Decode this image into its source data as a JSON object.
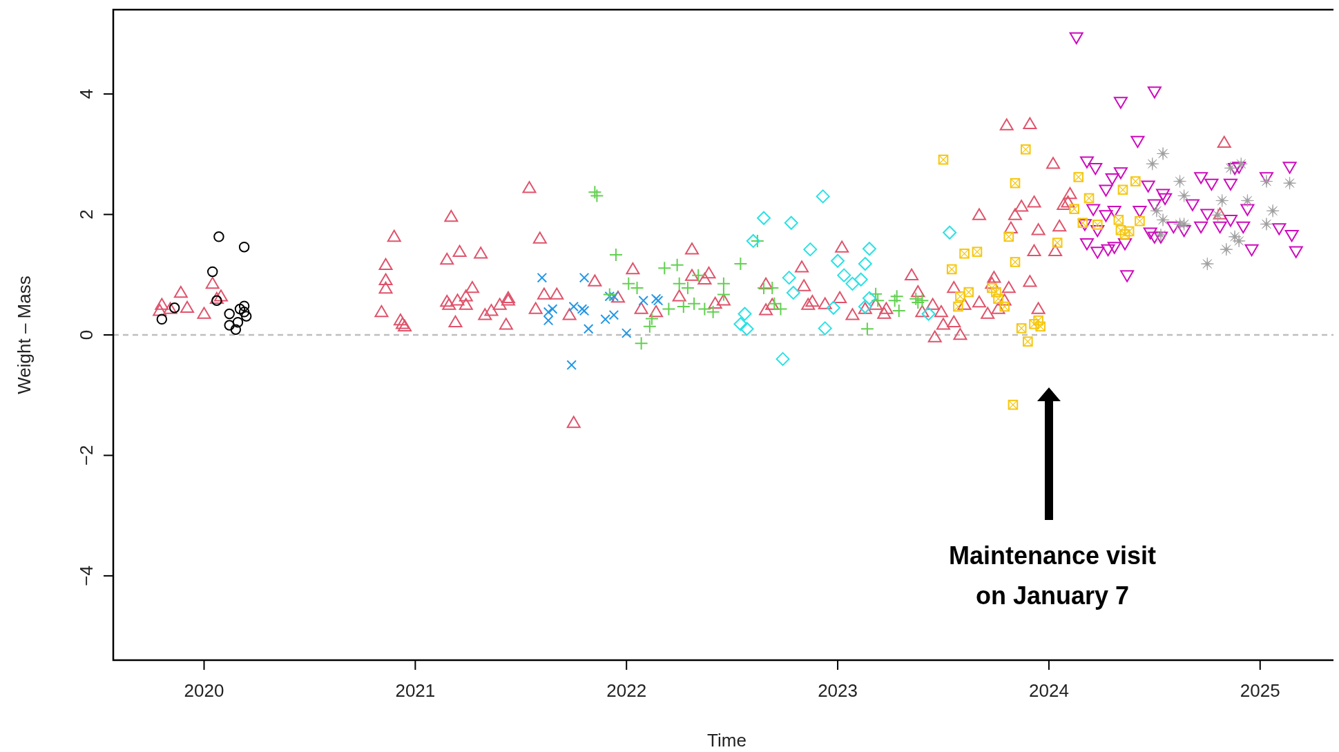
{
  "chart_data": {
    "type": "scatter",
    "xlabel": "Time",
    "ylabel": "Weight – Mass",
    "xlim": [
      2019.57,
      2025.38
    ],
    "ylim": [
      -5.4,
      5.4
    ],
    "xticks": [
      2020,
      2021,
      2022,
      2023,
      2024,
      2025
    ],
    "yticks": [
      -4,
      -2,
      0,
      2,
      4
    ],
    "grid": false,
    "ref_lines": [
      {
        "axis": "y",
        "value": 0,
        "color": "#bebebe",
        "line_style": "dashed"
      }
    ],
    "annotations": [
      "Maintenance visit\non January 7"
    ],
    "series": [
      {
        "color": "#000000",
        "marker": "circle",
        "x": [
          2019.8,
          2019.86,
          2020.04,
          2020.07,
          2020.06,
          2020.12,
          2020.12,
          2020.15,
          2020.16,
          2020.17,
          2020.19,
          2020.19,
          2020.2,
          2020.19
        ],
        "values": [
          0.26,
          0.45,
          1.05,
          1.63,
          0.57,
          0.35,
          0.16,
          0.09,
          0.21,
          0.43,
          0.48,
          0.38,
          0.31,
          1.46
        ]
      },
      {
        "color": "#df536b",
        "marker": "triangle",
        "x": [
          2019.79,
          2019.8,
          2019.84,
          2019.89,
          2019.92,
          2020.0,
          2020.04,
          2020.06,
          2020.08,
          2020.84,
          2020.86,
          2020.86,
          2020.86,
          2020.9,
          2020.93,
          2020.94,
          2020.95,
          2021.15,
          2021.17,
          2021.15,
          2021.16,
          2021.19,
          2021.2,
          2021.21,
          2021.24,
          2021.24,
          2021.27,
          2021.31,
          2021.33,
          2021.36,
          2021.4,
          2021.43,
          2021.44,
          2021.44,
          2021.54,
          2021.59,
          2021.57,
          2021.61,
          2021.67,
          2021.73,
          2021.75,
          2021.85,
          2021.96,
          2022.03,
          2022.07,
          2022.14,
          2022.25,
          2022.31,
          2022.31,
          2022.37,
          2022.39,
          2022.42,
          2022.46,
          2022.66,
          2022.66,
          2022.69,
          2022.83,
          2022.84,
          2022.86,
          2022.88,
          2022.94,
          2023.02,
          2023.01,
          2023.07,
          2023.13,
          2023.18,
          2023.22,
          2023.23,
          2023.35,
          2023.38,
          2023.4,
          2023.45,
          2023.46,
          2023.49,
          2023.5,
          2023.55,
          2023.55,
          2023.58,
          2023.6,
          2023.67,
          2023.67,
          2023.71,
          2023.73,
          2023.74,
          2023.76,
          2023.79,
          2023.8,
          2023.81,
          2023.82,
          2023.84,
          2023.87,
          2023.91,
          2023.91,
          2023.93,
          2023.95,
          2023.93,
          2023.95,
          2024.02,
          2024.03,
          2024.05,
          2024.09,
          2024.1,
          2024.07,
          2024.83,
          2024.81
        ],
        "values": [
          0.4,
          0.5,
          0.43,
          0.7,
          0.45,
          0.35,
          0.85,
          0.6,
          0.64,
          0.38,
          0.77,
          0.91,
          1.16,
          1.63,
          0.24,
          0.18,
          0.14,
          1.25,
          1.96,
          0.55,
          0.5,
          0.21,
          0.57,
          1.38,
          0.5,
          0.64,
          0.78,
          1.35,
          0.33,
          0.4,
          0.5,
          0.17,
          0.57,
          0.61,
          2.44,
          1.6,
          0.43,
          0.67,
          0.67,
          0.33,
          -1.46,
          0.89,
          0.62,
          1.09,
          0.43,
          0.38,
          0.64,
          1.42,
          0.98,
          0.92,
          1.02,
          0.52,
          0.57,
          0.84,
          0.41,
          0.5,
          1.12,
          0.81,
          0.5,
          0.55,
          0.51,
          1.45,
          0.61,
          0.33,
          0.43,
          0.5,
          0.35,
          0.43,
          0.99,
          0.71,
          0.38,
          0.5,
          -0.04,
          0.38,
          0.17,
          0.78,
          0.21,
          0.0,
          0.5,
          1.99,
          0.54,
          0.35,
          0.85,
          0.95,
          0.43,
          0.57,
          3.48,
          0.78,
          1.77,
          1.99,
          2.13,
          3.5,
          0.88,
          2.2,
          1.74,
          1.39,
          0.43,
          2.84,
          1.39,
          1.8,
          2.2,
          2.34,
          2.16,
          3.19,
          2.0
        ]
      },
      {
        "color": "#2297e6",
        "marker": "x",
        "x": [
          2021.6,
          2021.63,
          2021.65,
          2021.63,
          2021.74,
          2021.75,
          2021.79,
          2021.8,
          2021.8,
          2021.82,
          2021.9,
          2021.92,
          2021.94,
          2021.94,
          2022.0,
          2022.08,
          2022.14,
          2022.15
        ],
        "values": [
          0.95,
          0.38,
          0.43,
          0.24,
          -0.5,
          0.47,
          0.43,
          0.4,
          0.95,
          0.1,
          0.26,
          0.64,
          0.33,
          0.64,
          0.03,
          0.57,
          0.6,
          0.57
        ]
      },
      {
        "color": "#61d04f",
        "marker": "plus",
        "x": [
          2021.86,
          2021.85,
          2021.95,
          2021.92,
          2022.01,
          2022.05,
          2022.07,
          2022.11,
          2022.12,
          2022.18,
          2022.24,
          2022.25,
          2022.2,
          2022.27,
          2022.29,
          2022.32,
          2022.34,
          2022.37,
          2022.41,
          2022.46,
          2022.46,
          2022.54,
          2022.62,
          2022.65,
          2022.69,
          2022.7,
          2022.73,
          2023.14,
          2023.18,
          2023.19,
          2023.27,
          2023.29,
          2023.37,
          2023.4,
          2023.38,
          2023.28
        ],
        "values": [
          2.31,
          2.37,
          1.33,
          0.67,
          0.85,
          0.78,
          -0.14,
          0.14,
          0.27,
          1.11,
          1.16,
          0.85,
          0.43,
          0.47,
          0.78,
          0.52,
          0.99,
          0.43,
          0.38,
          0.85,
          0.67,
          1.18,
          1.56,
          0.78,
          0.78,
          0.52,
          0.43,
          0.1,
          0.68,
          0.57,
          0.57,
          0.4,
          0.6,
          0.57,
          0.54,
          0.64
        ]
      },
      {
        "color": "#28e2e5",
        "marker": "diamond",
        "x": [
          2022.54,
          2022.56,
          2022.57,
          2022.65,
          2022.6,
          2022.74,
          2022.78,
          2022.77,
          2022.79,
          2022.87,
          2022.93,
          2022.94,
          2022.98,
          2023.0,
          2023.03,
          2023.07,
          2023.11,
          2023.13,
          2023.15,
          2023.13,
          2023.15,
          2023.43,
          2023.53
        ],
        "values": [
          0.18,
          0.35,
          0.1,
          1.94,
          1.56,
          -0.4,
          1.86,
          0.95,
          0.7,
          1.42,
          2.3,
          0.11,
          0.45,
          1.23,
          0.99,
          0.85,
          0.92,
          1.18,
          1.43,
          0.47,
          0.61,
          0.35,
          1.7
        ]
      },
      {
        "color": "#cd0bbc",
        "marker": "triangle-down",
        "x": [
          2024.13,
          2024.34,
          2024.5,
          2024.42,
          2024.18,
          2024.22,
          2024.3,
          2024.34,
          2024.27,
          2024.21,
          2024.27,
          2024.31,
          2024.23,
          2024.17,
          2024.18,
          2024.23,
          2024.28,
          2024.31,
          2024.36,
          2024.37,
          2024.47,
          2024.5,
          2024.54,
          2024.55,
          2024.43,
          2024.48,
          2024.53,
          2024.59,
          2024.64,
          2024.68,
          2024.72,
          2024.77,
          2024.72,
          2024.81,
          2024.86,
          2024.88,
          2024.9,
          2024.86,
          2024.92,
          2024.94,
          2024.96,
          2025.03,
          2025.09,
          2025.14,
          2025.15,
          2025.17,
          2024.5,
          2024.75
        ],
        "values": [
          4.94,
          3.87,
          4.04,
          3.22,
          2.88,
          2.77,
          2.6,
          2.7,
          2.41,
          2.09,
          1.99,
          2.06,
          1.74,
          1.84,
          1.52,
          1.38,
          1.42,
          1.46,
          1.52,
          0.99,
          2.48,
          2.17,
          2.34,
          2.27,
          2.06,
          1.7,
          1.63,
          1.8,
          1.74,
          2.17,
          2.62,
          2.51,
          1.8,
          1.8,
          1.91,
          2.77,
          2.79,
          2.51,
          1.8,
          2.09,
          1.42,
          2.62,
          1.77,
          2.79,
          1.66,
          1.39,
          1.63,
          2.01
        ]
      },
      {
        "color": "#f5c710",
        "marker": "square",
        "x": [
          2023.5,
          2023.66,
          2023.6,
          2023.54,
          2023.89,
          2023.84,
          2023.81,
          2023.84,
          2023.58,
          2023.62,
          2023.57,
          2023.75,
          2023.76,
          2023.79,
          2023.73,
          2023.87,
          2023.9,
          2023.93,
          2023.95,
          2023.96,
          2023.83,
          2024.04,
          2024.14,
          2024.12,
          2024.19,
          2024.35,
          2024.41,
          2024.34,
          2024.33,
          2024.43,
          2024.38,
          2024.23,
          2024.16,
          2024.36
        ],
        "values": [
          2.91,
          1.38,
          1.35,
          1.09,
          3.08,
          2.52,
          1.63,
          1.21,
          0.64,
          0.71,
          0.47,
          0.71,
          0.6,
          0.47,
          0.78,
          0.11,
          -0.11,
          0.18,
          0.24,
          0.14,
          -1.16,
          1.53,
          2.62,
          2.09,
          2.27,
          2.41,
          2.55,
          1.74,
          1.91,
          1.89,
          1.72,
          1.83,
          1.86,
          1.67
        ]
      },
      {
        "color": "#9e9e9e",
        "marker": "star",
        "x": [
          2024.49,
          2024.54,
          2024.62,
          2024.64,
          2024.51,
          2024.64,
          2024.54,
          2024.62,
          2024.53,
          2024.75,
          2024.8,
          2024.82,
          2024.84,
          2024.86,
          2024.88,
          2024.91,
          2024.94,
          2025.03,
          2025.06,
          2025.03,
          2025.14,
          2024.9
        ],
        "values": [
          2.84,
          3.01,
          2.55,
          2.31,
          2.06,
          1.84,
          1.91,
          1.84,
          1.66,
          1.18,
          1.99,
          2.23,
          1.42,
          2.77,
          1.63,
          2.84,
          2.23,
          2.55,
          2.06,
          1.84,
          2.52,
          1.56
        ]
      }
    ]
  }
}
